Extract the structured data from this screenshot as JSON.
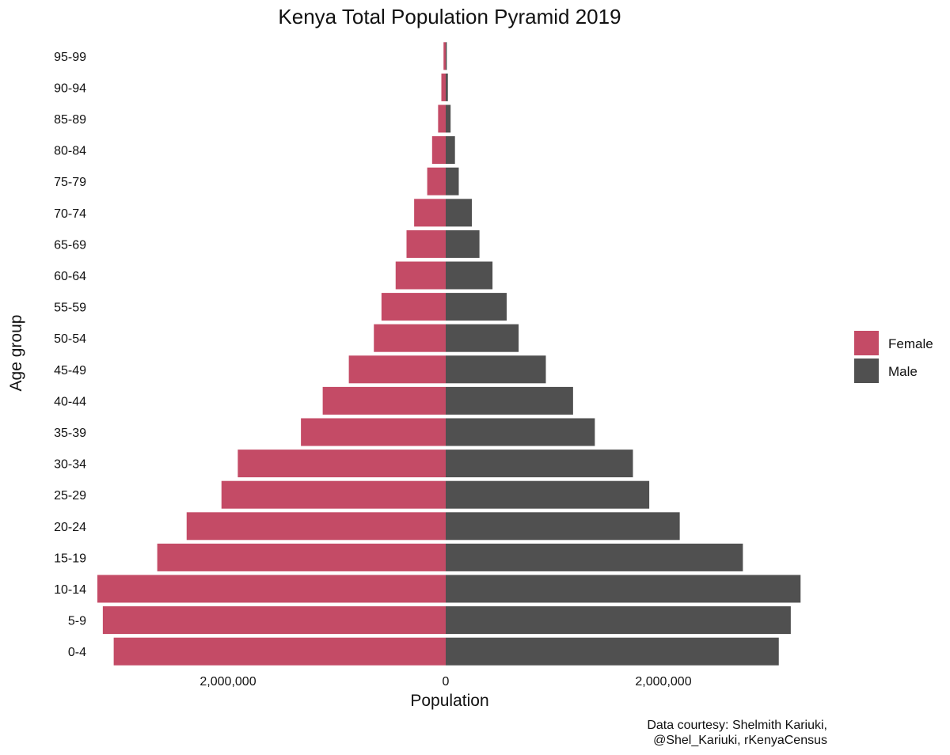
{
  "chart_data": {
    "type": "bar",
    "orientation": "horizontal-diverging",
    "title": "Kenya Total Population Pyramid 2019",
    "xlabel": "Population",
    "ylabel": "Age group",
    "categories": [
      "0-4",
      "5-9",
      "10-14",
      "15-19",
      "20-24",
      "25-29",
      "30-34",
      "35-39",
      "40-44",
      "45-49",
      "50-54",
      "55-59",
      "60-64",
      "65-69",
      "70-74",
      "75-79",
      "80-84",
      "85-89",
      "90-94",
      "95-99"
    ],
    "series": [
      {
        "name": "Female",
        "color": "#c44b66",
        "values": [
          3050000,
          3150000,
          3200000,
          2650000,
          2380000,
          2060000,
          1910000,
          1330000,
          1130000,
          890000,
          660000,
          590000,
          460000,
          360000,
          290000,
          170000,
          125000,
          70000,
          40000,
          20000
        ]
      },
      {
        "name": "Male",
        "color": "#505050",
        "values": [
          3060000,
          3170000,
          3260000,
          2730000,
          2150000,
          1870000,
          1720000,
          1370000,
          1170000,
          920000,
          670000,
          560000,
          430000,
          310000,
          240000,
          120000,
          85000,
          45000,
          20000,
          10000
        ]
      }
    ],
    "xticks": [
      -2000000,
      0,
      2000000
    ],
    "xtick_labels": [
      "2,000,000",
      "0",
      "2,000,000"
    ],
    "xlim": [
      -3250000,
      3300000
    ],
    "grid": false,
    "legend": {
      "position": "right",
      "entries": [
        "Female",
        "Male"
      ]
    },
    "caption_lines": [
      "Data courtesy: Shelmith Kariuki,",
      "@Shel_Kariuki, rKenyaCensus"
    ]
  }
}
